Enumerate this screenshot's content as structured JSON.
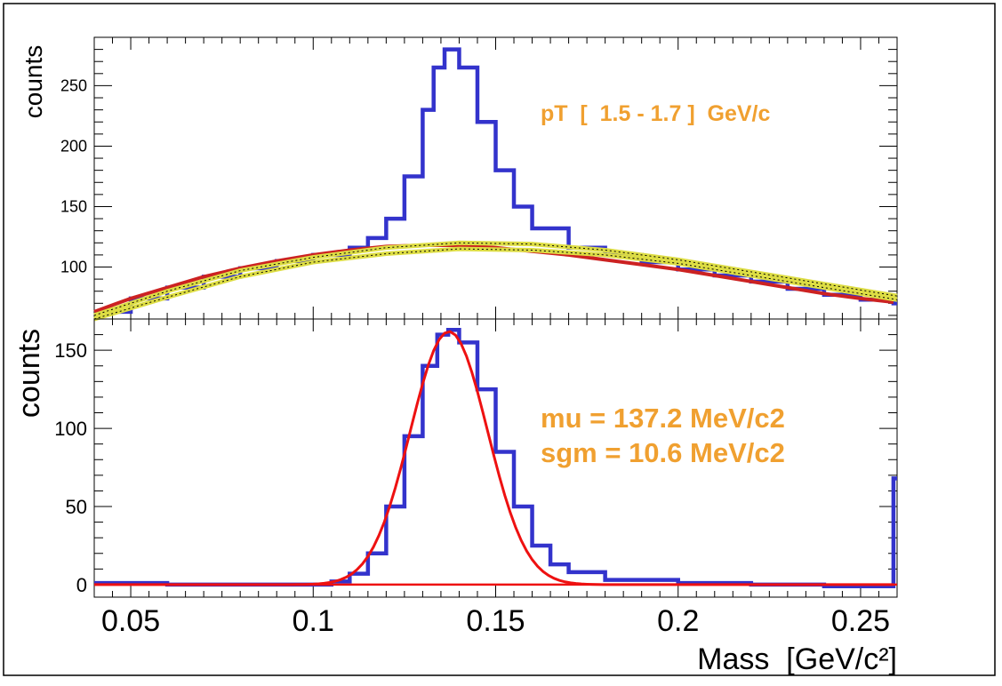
{
  "chart_data": [
    {
      "type": "line",
      "panel": "top",
      "ylabel": "counts",
      "annotation": "pT  [  1.5 - 1.7 ]  GeV/c",
      "xlim": [
        0.04,
        0.26
      ],
      "ylim": [
        57,
        290
      ],
      "y_ticks": [
        100,
        150,
        200,
        250
      ],
      "series": [
        {
          "color": "#3333cc",
          "style": "histogram",
          "x": [
            0.04,
            0.05,
            0.06,
            0.07,
            0.08,
            0.09,
            0.1,
            0.11,
            0.115,
            0.12,
            0.125,
            0.13,
            0.133,
            0.136,
            0.14,
            0.145,
            0.15,
            0.155,
            0.16,
            0.17,
            0.18,
            0.19,
            0.2,
            0.21,
            0.22,
            0.23,
            0.24,
            0.25,
            0.259
          ],
          "values": [
            63,
            74,
            83,
            92,
            99,
            105,
            110,
            116,
            124,
            140,
            175,
            230,
            265,
            280,
            265,
            220,
            180,
            150,
            132,
            116,
            110,
            104,
            98,
            93,
            88,
            82,
            77,
            73,
            70
          ]
        },
        {
          "color": "#cc2222",
          "style": "line",
          "x": [
            0.04,
            0.05,
            0.06,
            0.07,
            0.08,
            0.09,
            0.1,
            0.11,
            0.12,
            0.13,
            0.14,
            0.15,
            0.16,
            0.17,
            0.18,
            0.19,
            0.2,
            0.21,
            0.22,
            0.23,
            0.24,
            0.25,
            0.259
          ],
          "values": [
            63,
            74,
            83,
            92,
            99,
            105,
            110,
            114,
            117,
            118,
            118,
            116,
            113,
            110,
            106,
            102,
            98,
            93,
            88,
            83,
            78,
            74,
            71
          ]
        },
        {
          "color": "#dddd44",
          "style": "band-upper",
          "x": [
            0.04,
            0.06,
            0.08,
            0.1,
            0.12,
            0.14,
            0.16,
            0.18,
            0.2,
            0.22,
            0.24,
            0.26
          ],
          "values": [
            60,
            80,
            97,
            108,
            116,
            120,
            119,
            114,
            106,
            96,
            86,
            76
          ]
        },
        {
          "color": "#dddd44",
          "style": "band-lower",
          "x": [
            0.04,
            0.06,
            0.08,
            0.1,
            0.12,
            0.14,
            0.16,
            0.18,
            0.2,
            0.22,
            0.24,
            0.26
          ],
          "values": [
            57,
            75,
            92,
            104,
            111,
            115,
            114,
            110,
            103,
            93,
            83,
            73
          ]
        }
      ]
    },
    {
      "type": "line",
      "panel": "bottom",
      "ylabel": "counts",
      "xlabel": "Mass  [GeV/c²]",
      "annotations": [
        "mu = 137.2 MeV/c2",
        "sgm = 10.6 MeV/c2"
      ],
      "xlim": [
        0.04,
        0.26
      ],
      "ylim": [
        -8,
        170
      ],
      "x_ticks": [
        0.05,
        0.1,
        0.15,
        0.2,
        0.25
      ],
      "x_tick_labels": [
        "0.05",
        "0.1",
        "0.15",
        "0.2",
        "0.25"
      ],
      "y_ticks": [
        0,
        50,
        100,
        150
      ],
      "series": [
        {
          "color": "#3333cc",
          "style": "histogram",
          "x": [
            0.04,
            0.06,
            0.08,
            0.1,
            0.105,
            0.11,
            0.115,
            0.12,
            0.125,
            0.13,
            0.134,
            0.137,
            0.14,
            0.145,
            0.15,
            0.155,
            0.16,
            0.165,
            0.17,
            0.18,
            0.2,
            0.22,
            0.24,
            0.258,
            0.259
          ],
          "values": [
            1,
            0,
            0,
            0,
            2,
            7,
            20,
            50,
            95,
            140,
            160,
            163,
            155,
            125,
            85,
            50,
            25,
            13,
            8,
            3,
            1,
            0,
            -1,
            -1,
            68
          ]
        },
        {
          "color": "#ee1111",
          "style": "gaussian",
          "mu": 0.1372,
          "sigma": 0.0106,
          "amplitude": 162
        },
        {
          "color": "#ee1111",
          "style": "line",
          "x": [
            0.04,
            0.26
          ],
          "values": [
            0,
            0
          ]
        }
      ]
    }
  ]
}
